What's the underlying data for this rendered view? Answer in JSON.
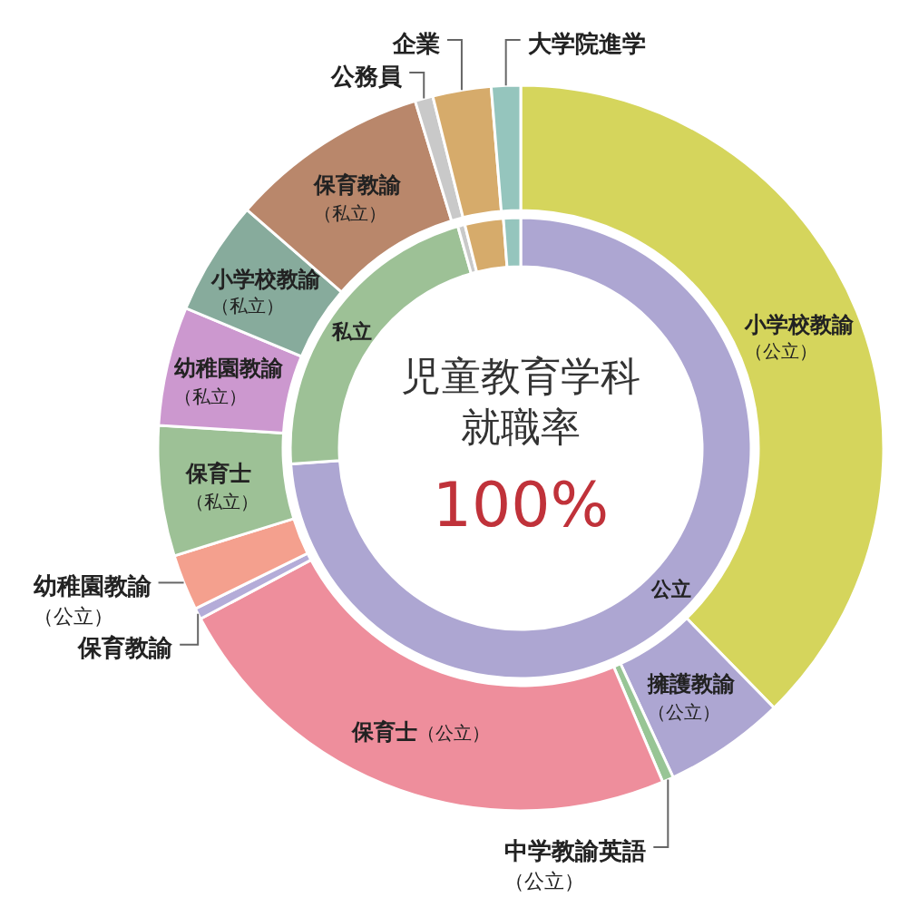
{
  "chart_data": [
    {
      "type": "donut",
      "title": "児童教育学科就職率",
      "annotations": [
        "100%"
      ],
      "categories": [
        "公立",
        "私立",
        null,
        null,
        null
      ],
      "values": [
        73.9,
        21.7,
        0.5,
        2.7,
        1.2
      ],
      "colors": [
        "#ada6d2",
        "#9dc196",
        "#c9c9c9",
        "#d6ab6b",
        "#95c5bd"
      ]
    },
    {
      "type": "donut",
      "categories": [
        "小学校教諭（公立）",
        "擁護教諭（公立）",
        "中学教諭英語（公立）",
        "保育士（公立）",
        "保育教諭",
        "幼稚園教諭（公立）",
        "保育士（私立）",
        "幼稚園教諭（私立）",
        "小学校教諭（私立）",
        "保育教諭（私立）",
        "公務員",
        "企業",
        "大学院進学"
      ],
      "values": [
        37.7,
        5.4,
        0.5,
        23.6,
        0.5,
        2.5,
        5.8,
        5.3,
        5.1,
        8.9,
        0.8,
        2.6,
        1.3
      ],
      "colors": [
        "#d5d55c",
        "#ada6d2",
        "#98c595",
        "#ee8e9c",
        "#b4acd8",
        "#f4a08e",
        "#9dc196",
        "#cc98cf",
        "#87ab9c",
        "#b9876b",
        "#c9c9c9",
        "#d6ab6b",
        "#95c5bd"
      ]
    }
  ]
}
